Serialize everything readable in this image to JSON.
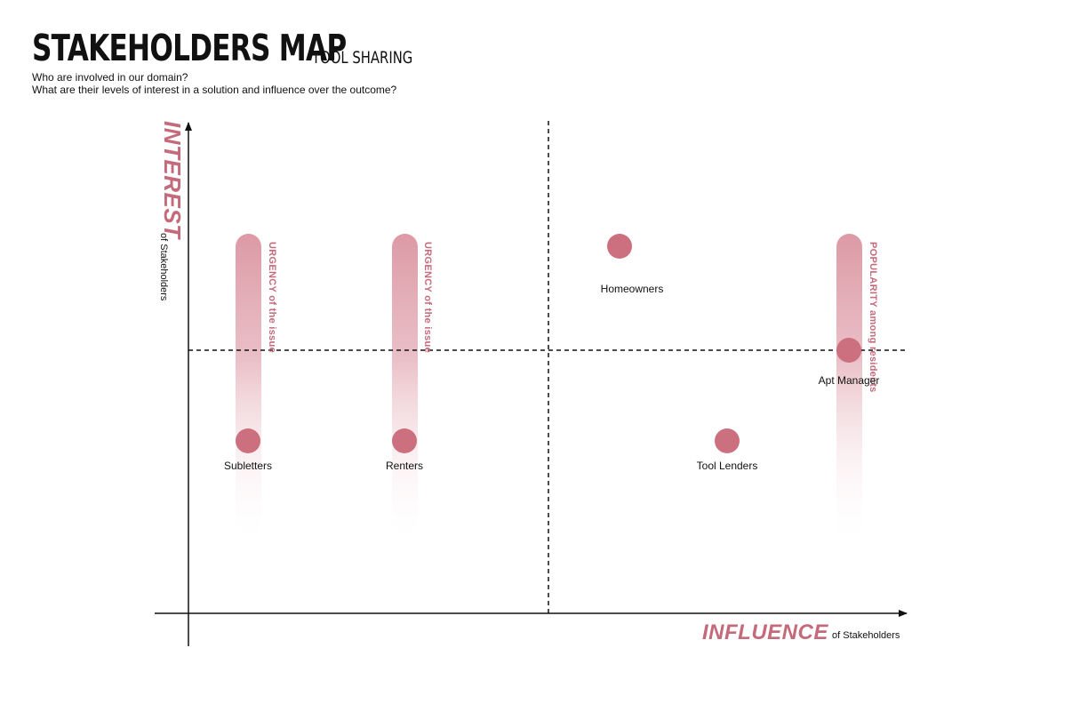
{
  "header": {
    "title": "STAKEHOLDERS MAP",
    "subtitle": "TOOL SHARING",
    "question_1": "Who are involved in our domain?",
    "question_2": "What are their levels of interest in a solution and influence over the outcome?"
  },
  "axes": {
    "y_title": "INTEREST",
    "y_subtitle": "of Stakeholders",
    "x_title": "INFLUENCE",
    "x_subtitle": "of Stakeholders"
  },
  "bars": [
    {
      "id": "urgency-subletters",
      "label": "URGENCY of the issue"
    },
    {
      "id": "urgency-renters",
      "label": "URGENCY of the issue"
    },
    {
      "id": "popularity-residents",
      "label": "POPULARITY among residents"
    }
  ],
  "stakeholders": [
    {
      "id": "subletters",
      "label": "Subletters"
    },
    {
      "id": "renters",
      "label": "Renters"
    },
    {
      "id": "homeowners",
      "label": "Homeowners"
    },
    {
      "id": "tool-lenders",
      "label": "Tool Lenders"
    },
    {
      "id": "apt-manager",
      "label": "Apt Manager"
    }
  ],
  "colors": {
    "accent": "#c46a7b",
    "node_fill": "#cc6f7f",
    "bar_top": "#dc9aa5"
  }
}
